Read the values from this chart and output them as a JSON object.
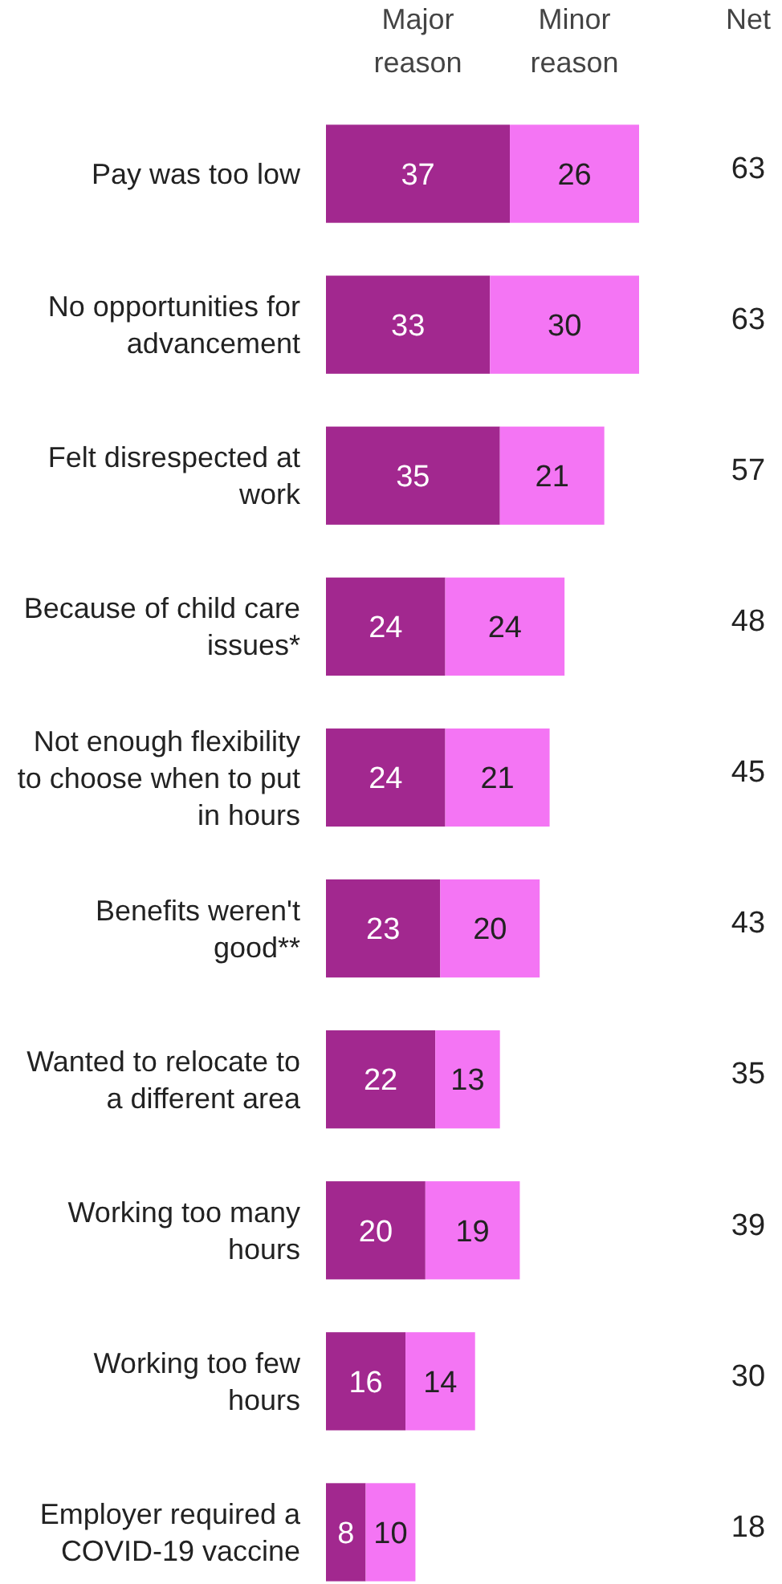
{
  "chart_data": {
    "type": "bar",
    "orientation": "horizontal",
    "stacked": true,
    "data_labels": true,
    "legend": "top",
    "categories": [
      "Pay was too low",
      "No opportunities for advancement",
      "Felt disrespected at work",
      "Because of child care issues*",
      "Not enough flexibility to choose when to put in hours",
      "Benefits weren't good**",
      "Wanted to relocate to a different area",
      "Working too many hours",
      "Working too few hours",
      "Employer required a COVID-19 vaccine"
    ],
    "series": [
      {
        "name": "Major reason",
        "color": "#a2288f",
        "values": [
          37,
          33,
          35,
          24,
          24,
          23,
          22,
          20,
          16,
          8
        ]
      },
      {
        "name": "Minor reason",
        "color": "#f475f4",
        "values": [
          26,
          30,
          21,
          24,
          21,
          20,
          13,
          19,
          14,
          10
        ]
      }
    ],
    "annotations": [
      "Net",
      "63",
      "63",
      "57",
      "48",
      "45",
      "43",
      "35",
      "39",
      "30",
      "18"
    ]
  }
}
